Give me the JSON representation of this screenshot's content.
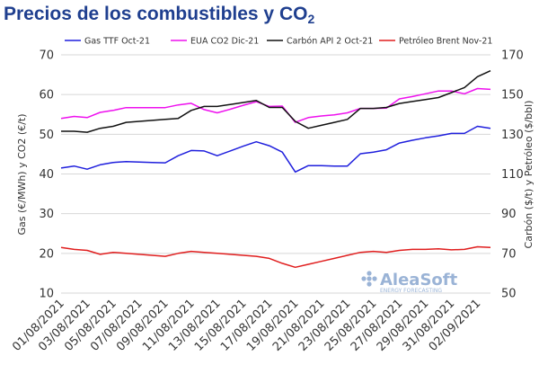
{
  "title_main": "Precios de los combustibles y CO",
  "title_sub": "2",
  "watermark": {
    "name": "AleaSoft",
    "tagline": "ENERGY FORECASTING"
  },
  "colors": {
    "gas": "#1f1fdd",
    "eua": "#ee10ee",
    "carbon": "#111111",
    "brent": "#e01e1e",
    "title": "#1f3f8f",
    "watermark": "#9ab3d6"
  },
  "chart_data": {
    "type": "line",
    "x": [
      "01/08/2021",
      "02/08/2021",
      "03/08/2021",
      "04/08/2021",
      "05/08/2021",
      "06/08/2021",
      "07/08/2021",
      "08/08/2021",
      "09/08/2021",
      "10/08/2021",
      "11/08/2021",
      "12/08/2021",
      "13/08/2021",
      "14/08/2021",
      "15/08/2021",
      "16/08/2021",
      "17/08/2021",
      "18/08/2021",
      "19/08/2021",
      "20/08/2021",
      "21/08/2021",
      "22/08/2021",
      "23/08/2021",
      "24/08/2021",
      "25/08/2021",
      "26/08/2021",
      "27/08/2021",
      "28/08/2021",
      "29/08/2021",
      "30/08/2021",
      "31/08/2021",
      "01/09/2021",
      "02/09/2021",
      "03/09/2021"
    ],
    "xticks": [
      "01/08/2021",
      "03/08/2021",
      "05/08/2021",
      "07/08/2021",
      "09/08/2021",
      "11/08/2021",
      "13/08/2021",
      "15/08/2021",
      "17/08/2021",
      "19/08/2021",
      "21/08/2021",
      "23/08/2021",
      "25/08/2021",
      "27/08/2021",
      "29/08/2021",
      "31/08/2021",
      "02/09/2021"
    ],
    "ylabel": "Gas (€/MWh) y CO2 (€/t)",
    "y2label": "Carbón ($/t) y Petróleo ($/bbl)",
    "ylim": [
      10,
      70
    ],
    "yticks": [
      10,
      20,
      30,
      40,
      50,
      60,
      70
    ],
    "y2lim": [
      50,
      170
    ],
    "y2ticks": [
      50,
      70,
      90,
      110,
      130,
      150,
      170
    ],
    "grid": "horizontal",
    "legend": "top",
    "series": [
      {
        "name": "Gas TTF Oct-21",
        "axis": "left",
        "color": "#1f1fdd",
        "values": [
          41.5,
          42.0,
          41.2,
          42.3,
          42.9,
          43.1,
          43.0,
          42.9,
          42.8,
          44.6,
          45.9,
          45.8,
          44.6,
          45.8,
          47.0,
          48.1,
          47.1,
          45.5,
          40.5,
          42.1,
          42.1,
          42.0,
          42.0,
          45.1,
          45.5,
          46.1,
          47.8,
          48.5,
          49.1,
          49.6,
          50.2,
          50.2,
          52.0,
          51.5
        ]
      },
      {
        "name": "EUA CO2 Dic-21",
        "axis": "left",
        "color": "#ee10ee",
        "values": [
          54.0,
          54.5,
          54.2,
          55.5,
          56.0,
          56.7,
          56.7,
          56.7,
          56.7,
          57.4,
          57.8,
          56.2,
          55.4,
          56.3,
          57.3,
          58.2,
          57.0,
          57.1,
          53.0,
          54.2,
          54.6,
          54.9,
          55.4,
          56.5,
          56.5,
          56.6,
          58.9,
          59.5,
          60.2,
          60.9,
          60.9,
          60.2,
          61.5,
          61.3
        ]
      },
      {
        "name": "Carbón API 2 Oct-21",
        "axis": "right",
        "color": "#111111",
        "values": [
          131.5,
          131.5,
          131.0,
          133.0,
          134.0,
          136.0,
          136.5,
          137.0,
          137.5,
          138.0,
          142.0,
          144.0,
          144.0,
          145.0,
          146.0,
          147.0,
          143.5,
          143.5,
          136.5,
          133.0,
          134.5,
          136.0,
          137.5,
          143.0,
          143.0,
          143.5,
          145.5,
          146.5,
          147.5,
          148.5,
          151.0,
          153.5,
          159.0,
          162.0
        ]
      },
      {
        "name": "Petróleo Brent Nov-21",
        "axis": "right",
        "color": "#e01e1e",
        "values": [
          73.0,
          72.0,
          71.5,
          69.5,
          70.5,
          70.0,
          69.5,
          69.0,
          68.5,
          70.0,
          71.0,
          70.5,
          70.0,
          69.5,
          69.0,
          68.5,
          67.5,
          65.0,
          63.0,
          64.5,
          66.0,
          67.5,
          69.0,
          70.5,
          71.0,
          70.5,
          71.5,
          72.0,
          72.0,
          72.3,
          71.8,
          72.0,
          73.3,
          73.0
        ]
      }
    ]
  }
}
